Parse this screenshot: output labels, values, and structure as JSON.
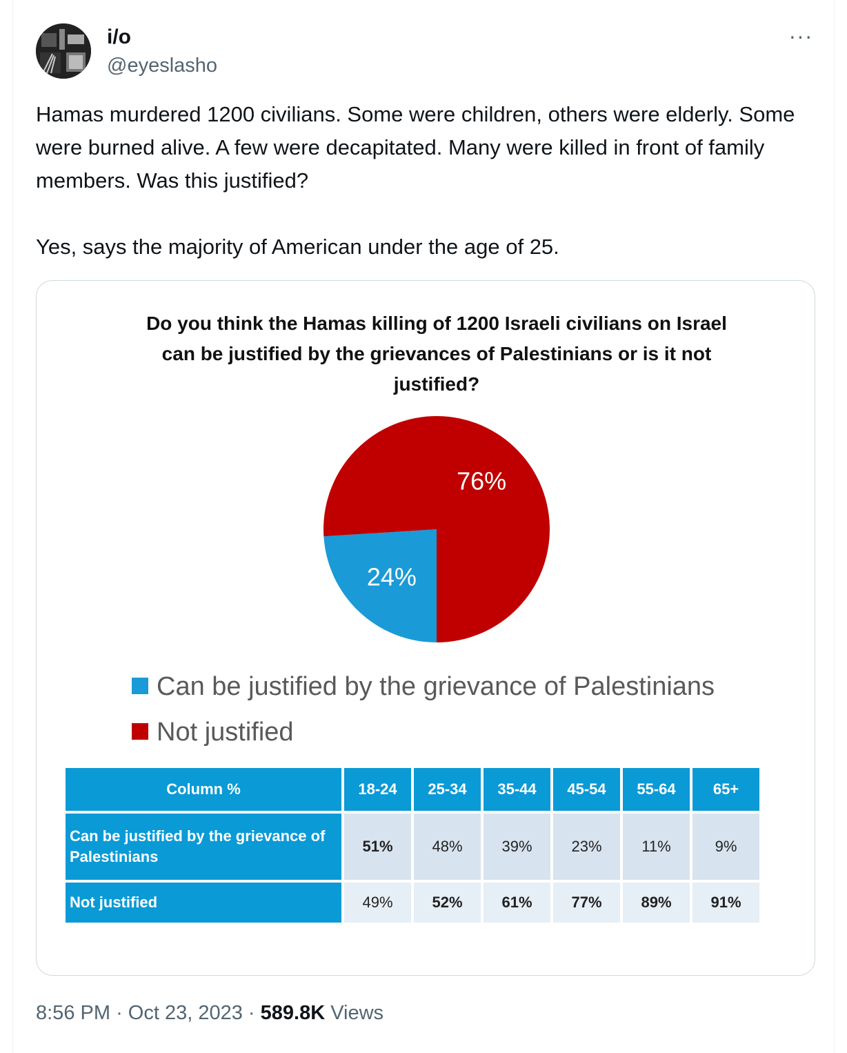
{
  "author": {
    "name": "i/o",
    "handle": "@eyeslasho"
  },
  "more_label": "···",
  "tweet": {
    "text": "Hamas murdered 1200 civilians. Some were children, others were elderly. Some were burned alive. A few were decapitated. Many were killed in front of family members. Was this justified?\n\nYes, says the majority of American under the age of 25."
  },
  "chart_data": [
    {
      "type": "pie",
      "title": "Do you think the Hamas killing of 1200 Israeli civilians on Israel can be justified by the grievances of Palestinians or is it not justified?",
      "categories": [
        "Can be justified by the grievance of Palestinians",
        "Not justified"
      ],
      "values": [
        24,
        76
      ],
      "labels": [
        "24%",
        "76%"
      ],
      "colors": [
        "#1a9ad6",
        "#c00000"
      ],
      "legend": "bottom"
    },
    {
      "type": "table",
      "header": "Column %",
      "columns": [
        "18-24",
        "25-34",
        "35-44",
        "45-54",
        "55-64",
        "65+"
      ],
      "rows": [
        {
          "label": "Can be justified by the grievance of Palestinians",
          "values": [
            "51%",
            "48%",
            "39%",
            "23%",
            "11%",
            "9%"
          ]
        },
        {
          "label": "Not justified",
          "values": [
            "49%",
            "52%",
            "61%",
            "77%",
            "89%",
            "91%"
          ]
        }
      ]
    }
  ],
  "footer": {
    "time": "8:56 PM",
    "date": "Oct 23, 2023",
    "views_count": "589.8K",
    "views_label": "Views"
  }
}
